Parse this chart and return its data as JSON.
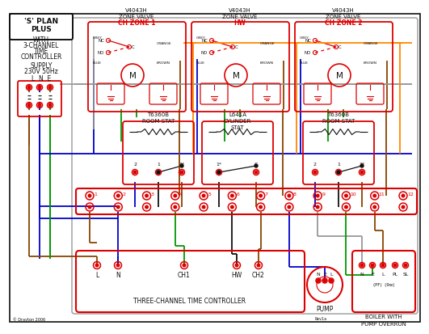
{
  "bg_color": "#ffffff",
  "red": "#dd0000",
  "blue": "#0000cc",
  "green": "#009900",
  "orange": "#ff8800",
  "brown": "#884400",
  "gray": "#999999",
  "black": "#111111",
  "zone_valve_labels": [
    "V4043H\nZONE VALVE\nCH ZONE 1",
    "V4043H\nZONE VALVE\nHW",
    "V4043H\nZONE VALVE\nCH ZONE 2"
  ],
  "stat_labels": [
    "T6360B\nROOM STAT",
    "L641A\nCYLINDER\nSTAT",
    "T6360B\nROOM STAT"
  ],
  "terminal_labels": [
    "1",
    "2",
    "3",
    "4",
    "5",
    "6",
    "7",
    "8",
    "9",
    "10",
    "11",
    "12"
  ],
  "controller_labels": [
    "L",
    "N",
    "CH1",
    "HW",
    "CH2"
  ],
  "three_channel_label": "THREE-CHANNEL TIME CONTROLLER",
  "copyright": "© Drayton 2006",
  "revnum": "Rev1a"
}
